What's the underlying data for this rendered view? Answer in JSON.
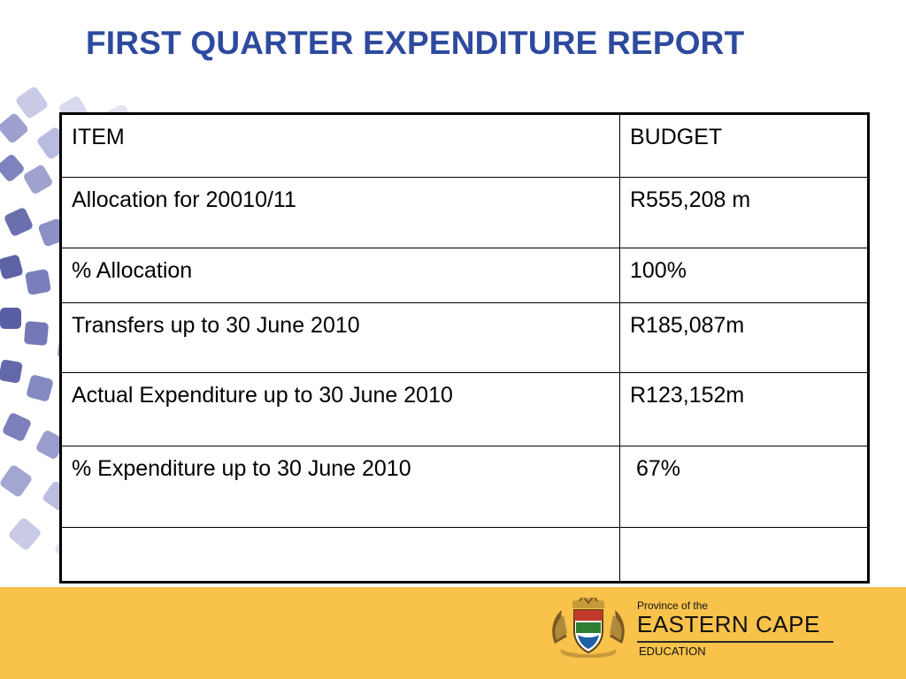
{
  "title": "FIRST QUARTER EXPENDITURE REPORT",
  "table": {
    "rows": [
      {
        "item": "ITEM",
        "budget": "BUDGET"
      },
      {
        "item": "Allocation for 20010/11",
        "budget": "R555,208 m"
      },
      {
        "item": "% Allocation",
        "budget": "100%"
      },
      {
        "item": "Transfers up to 30 June 2010",
        "budget": "R185,087m"
      },
      {
        "item": "Actual Expenditure up to 30 June 2010",
        "budget": "R123,152m"
      },
      {
        "item": "% Expenditure up to 30 June 2010",
        "budget": " 67%"
      },
      {
        "item": "",
        "budget": ""
      }
    ]
  },
  "footer": {
    "small": "Province of the",
    "main": "EASTERN CAPE",
    "sub": "EDUCATION"
  },
  "colors": {
    "title": "#2d4a9e",
    "footer_bar": "#f8c24b",
    "decor_dark": "#6a6fae",
    "decor_light": "#c9cbe6"
  }
}
